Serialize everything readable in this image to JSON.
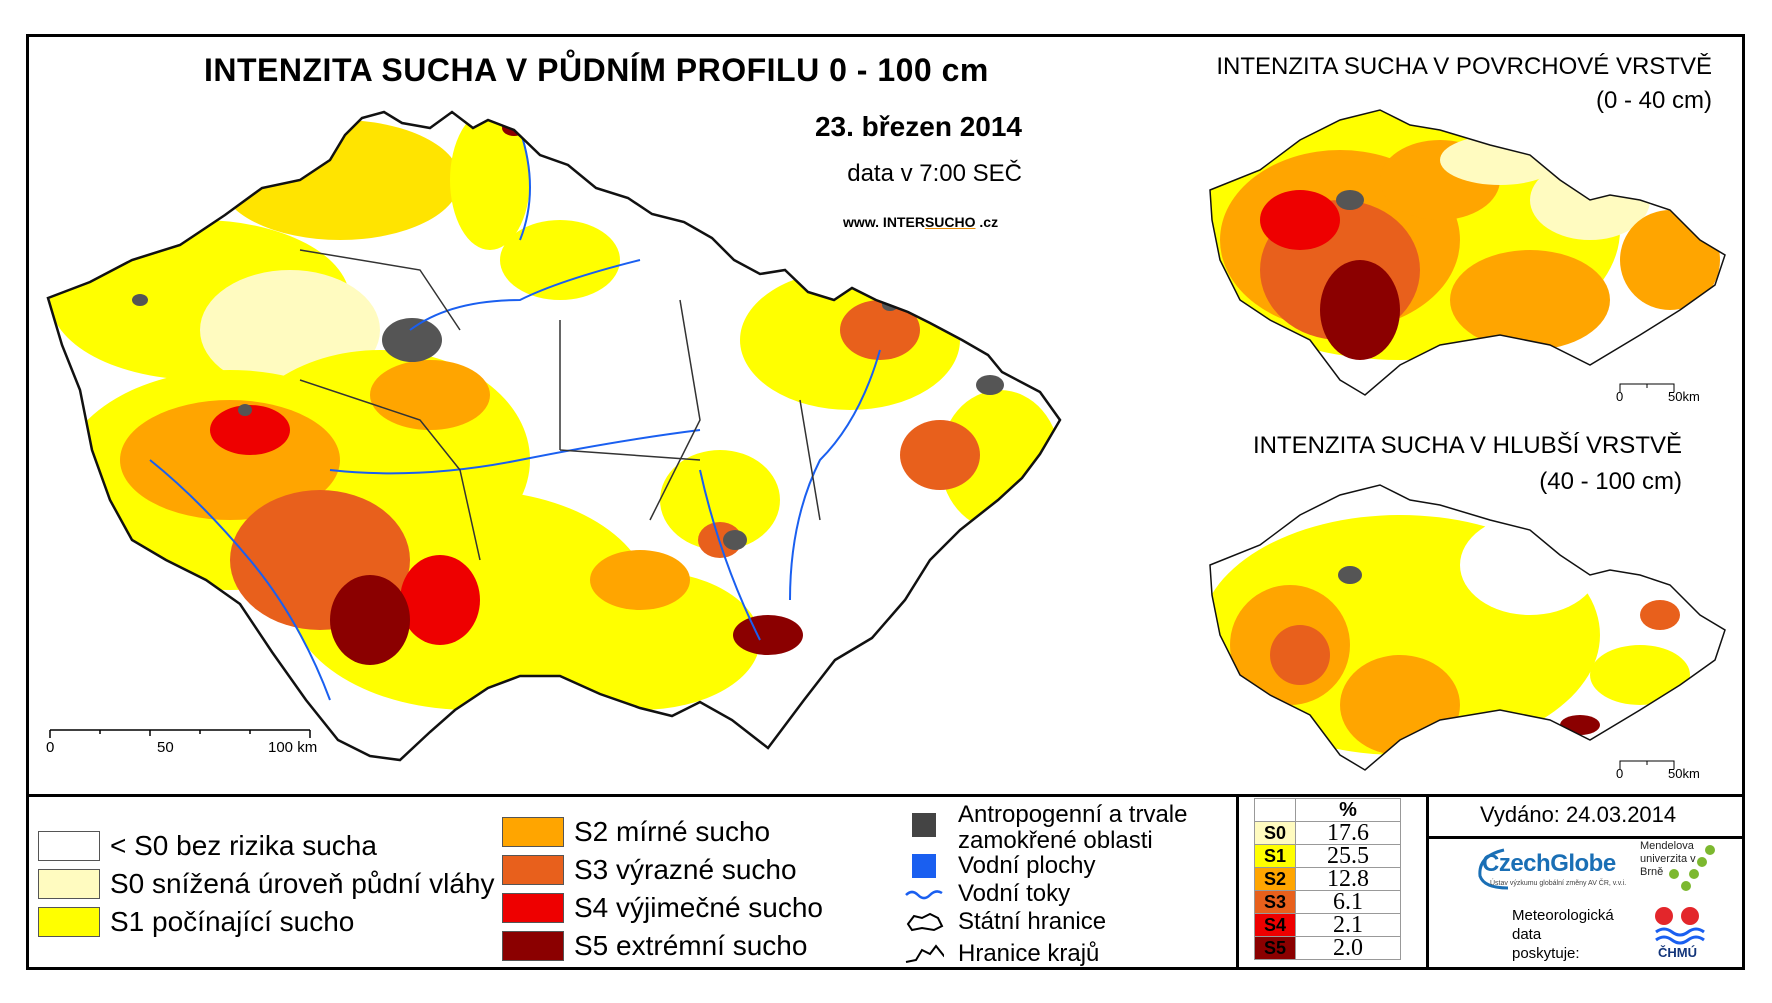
{
  "title": "INTENZITA SUCHA V PŮDNÍM PROFILU 0 - 100 cm",
  "date": "23. březen 2014",
  "time": "data v 7:00 SEČ",
  "website": {
    "prefix": "www. INTER",
    "highlight": "SUCHO",
    "suffix": " .cz"
  },
  "insets": {
    "surface": {
      "title": "INTENZITA SUCHA V POVRCHOVÉ VRSTVĚ",
      "depth": "(0 - 40 cm)",
      "scale_zero": "0",
      "scale_end": "50km"
    },
    "deep": {
      "title": "INTENZITA SUCHA V HLUBŠÍ VRSTVĚ",
      "depth": "(40 - 100 cm)",
      "scale_zero": "0",
      "scale_end": "50km"
    }
  },
  "main_scale": {
    "labels": [
      "0",
      "50",
      "100 km"
    ]
  },
  "legend": {
    "classes": [
      {
        "label": "< S0 bez rizika sucha",
        "color": "#ffffff"
      },
      {
        "label": "S0 snížená úroveň půdní vláhy",
        "color": "#fffbc0"
      },
      {
        "label": "S1 počínající sucho",
        "color": "#ffff00"
      },
      {
        "label": "S2 mírné sucho",
        "color": "#ffa500"
      },
      {
        "label": "S3 výrazné sucho",
        "color": "#e8601c"
      },
      {
        "label": "S4 výjimečné sucho",
        "color": "#ee0000"
      },
      {
        "label": "S5 extrémní sucho",
        "color": "#8b0000"
      }
    ],
    "aux": [
      {
        "label_1": "Antropogenní a trvale",
        "label_2": "zamokřené oblasti",
        "icon": "dark-square-icon"
      },
      {
        "label": "Vodní plochy",
        "icon": "blue-square-icon"
      },
      {
        "label": "Vodní toky",
        "icon": "river-line-icon"
      },
      {
        "label": "Státní hranice",
        "icon": "state-border-icon"
      },
      {
        "label": "Hranice krajů",
        "icon": "region-border-icon"
      }
    ]
  },
  "percent_table": {
    "header": "%",
    "rows": [
      {
        "code": "S0",
        "value": "17.6",
        "color": "#fffbc0"
      },
      {
        "code": "S1",
        "value": "25.5",
        "color": "#ffff00"
      },
      {
        "code": "S2",
        "value": "12.8",
        "color": "#ffa500"
      },
      {
        "code": "S3",
        "value": "6.1",
        "color": "#e8601c"
      },
      {
        "code": "S4",
        "value": "2.1",
        "color": "#ee0000"
      },
      {
        "code": "S5",
        "value": "2.0",
        "color": "#8b0000"
      }
    ]
  },
  "issued": "Vydáno: 24.03.2014",
  "logos": {
    "czechglobe": "CzechGlobe",
    "czechglobe_sub": "Ústav výzkumu globální změny AV ČR, v.v.i.",
    "mendel": "Mendelova univerzita v Brně",
    "meteo_line1": "Meteorologická",
    "meteo_line2": "data",
    "meteo_line3": "poskytuje:",
    "chmu": "ČHMÚ"
  }
}
